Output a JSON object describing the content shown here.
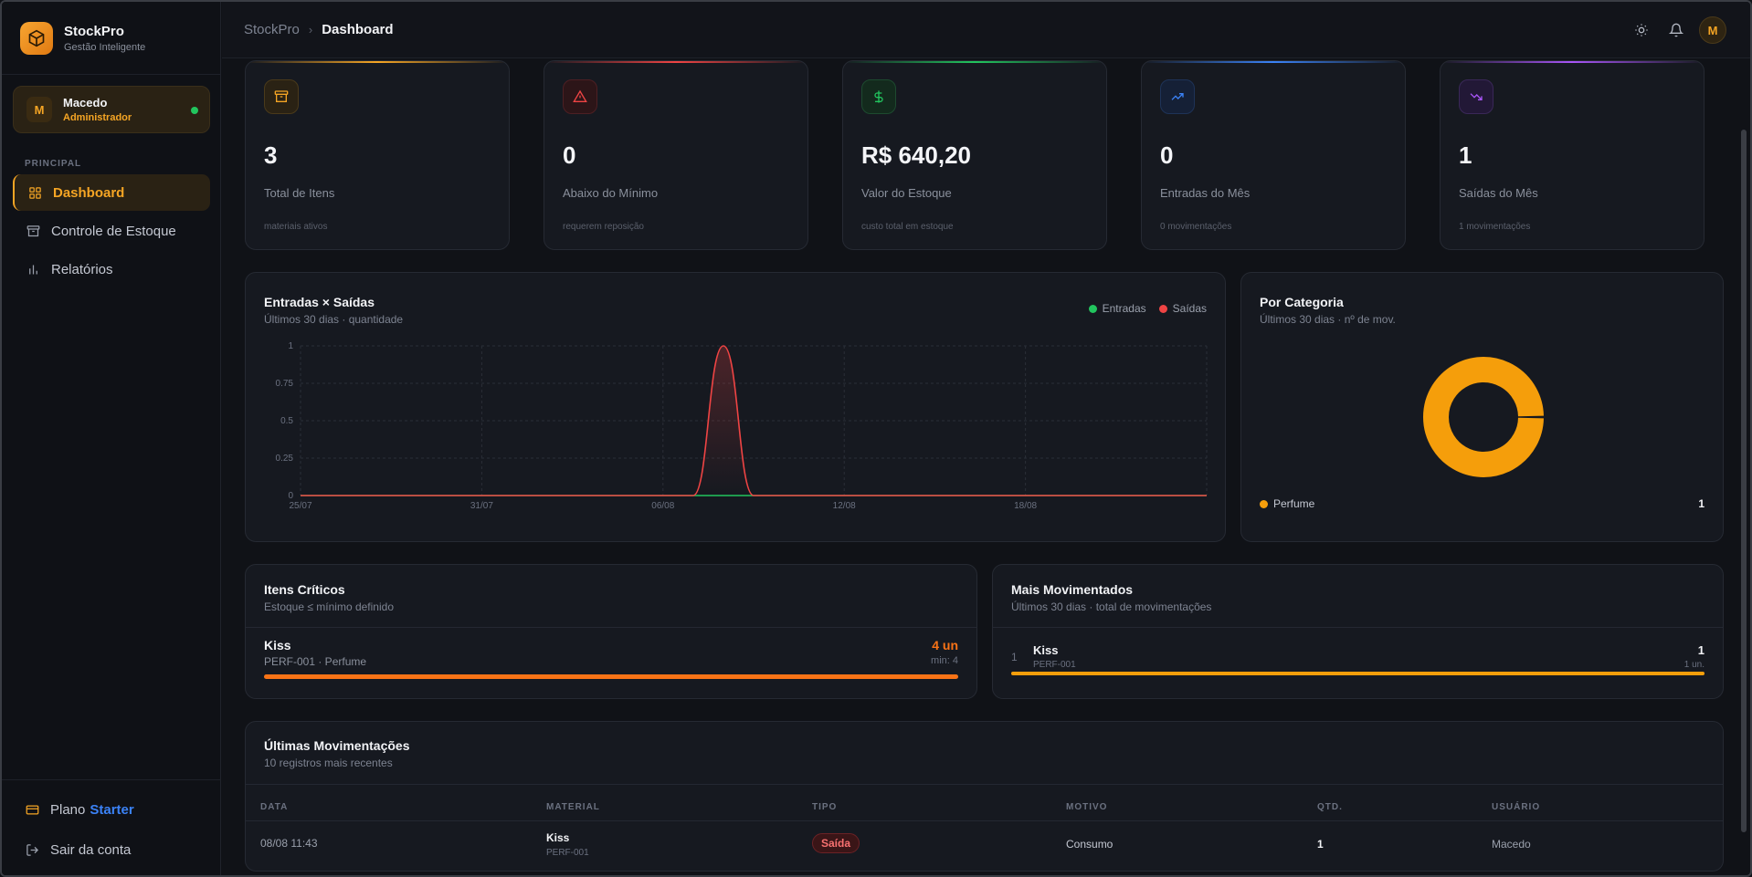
{
  "app": {
    "name": "StockPro",
    "tagline": "Gestão Inteligente"
  },
  "user": {
    "initial": "M",
    "name": "Macedo",
    "role": "Administrador"
  },
  "sidebar": {
    "section_label": "PRINCIPAL",
    "items": [
      {
        "label": "Dashboard",
        "icon": "grid-icon",
        "active": true
      },
      {
        "label": "Controle de Estoque",
        "icon": "archive-icon",
        "active": false
      },
      {
        "label": "Relatórios",
        "icon": "bar-chart-icon",
        "active": false
      }
    ],
    "plan_prefix": "Plano",
    "plan_name": "Starter",
    "logout": "Sair da conta"
  },
  "topbar": {
    "crumb_root": "StockPro",
    "crumb_current": "Dashboard",
    "avatar_initial": "M"
  },
  "stats": [
    {
      "value": "3",
      "label": "Total de Itens",
      "sub": "materiais ativos",
      "icon": "archive-icon",
      "color": "#f5a524"
    },
    {
      "value": "0",
      "label": "Abaixo do Mínimo",
      "sub": "requerem reposição",
      "icon": "warning-icon",
      "color": "#ef4444"
    },
    {
      "value": "R$ 640,20",
      "label": "Valor do Estoque",
      "sub": "custo total em estoque",
      "icon": "dollar-icon",
      "color": "#22c55e"
    },
    {
      "value": "0",
      "label": "Entradas do Mês",
      "sub": "0 movimentações",
      "icon": "trending-up-icon",
      "color": "#3b82f6"
    },
    {
      "value": "1",
      "label": "Saídas do Mês",
      "sub": "1 movimentações",
      "icon": "trending-down-icon",
      "color": "#a855f7"
    }
  ],
  "flow_chart": {
    "title": "Entradas × Saídas",
    "subtitle": "Últimos 30 dias · quantidade",
    "legend": {
      "in": "Entradas",
      "out": "Saídas"
    }
  },
  "category_chart": {
    "title": "Por Categoria",
    "subtitle": "Últimos 30 dias · nº de mov.",
    "items": [
      {
        "label": "Perfume",
        "value": "1"
      }
    ]
  },
  "critical": {
    "title": "Itens Críticos",
    "subtitle": "Estoque ≤ mínimo definido",
    "items": [
      {
        "name": "Kiss",
        "meta": "PERF-001 · Perfume",
        "qty": "4 un",
        "min": "min: 4",
        "level": 1.0
      }
    ]
  },
  "top_moved": {
    "title": "Mais Movimentados",
    "subtitle": "Últimos 30 dias · total de movimentações",
    "items": [
      {
        "rank": "1",
        "name": "Kiss",
        "code": "PERF-001",
        "count": "1",
        "unit": "1 un.",
        "level": 1.0
      }
    ]
  },
  "recent": {
    "title": "Últimas Movimentações",
    "subtitle": "10 registros mais recentes",
    "headers": [
      "DATA",
      "MATERIAL",
      "TIPO",
      "MOTIVO",
      "QTD.",
      "USUÁRIO"
    ],
    "rows": [
      {
        "date": "08/08 11:43",
        "material": "Kiss",
        "code": "PERF-001",
        "type": "Saída",
        "reason": "Consumo",
        "qty": "1",
        "user": "Macedo"
      }
    ]
  },
  "chart_data": [
    {
      "type": "area",
      "title": "Entradas × Saídas",
      "x_ticks": [
        "25/07",
        "31/07",
        "06/08",
        "12/08",
        "18/08"
      ],
      "y_ticks": [
        "0",
        "0.25",
        "0.5",
        "0.75",
        "1"
      ],
      "ylim": [
        0,
        1
      ],
      "grid": true,
      "legend_position": "top-right",
      "x": [
        "25/07",
        "26/07",
        "27/07",
        "28/07",
        "29/07",
        "30/07",
        "31/07",
        "01/08",
        "02/08",
        "03/08",
        "04/08",
        "05/08",
        "06/08",
        "07/08",
        "08/08",
        "09/08",
        "10/08",
        "11/08",
        "12/08",
        "13/08",
        "14/08",
        "15/08",
        "16/08",
        "17/08",
        "18/08",
        "19/08",
        "20/08",
        "21/08",
        "22/08",
        "23/08",
        "24/08"
      ],
      "series": [
        {
          "name": "Entradas",
          "color": "#22c55e",
          "values": [
            0,
            0,
            0,
            0,
            0,
            0,
            0,
            0,
            0,
            0,
            0,
            0,
            0,
            0,
            0,
            0,
            0,
            0,
            0,
            0,
            0,
            0,
            0,
            0,
            0,
            0,
            0,
            0,
            0,
            0,
            0
          ]
        },
        {
          "name": "Saídas",
          "color": "#ef4444",
          "values": [
            0,
            0,
            0,
            0,
            0,
            0,
            0,
            0,
            0,
            0,
            0,
            0,
            0,
            0,
            1,
            0,
            0,
            0,
            0,
            0,
            0,
            0,
            0,
            0,
            0,
            0,
            0,
            0,
            0,
            0,
            0
          ]
        }
      ]
    },
    {
      "type": "pie",
      "title": "Por Categoria",
      "categories": [
        "Perfume"
      ],
      "values": [
        1
      ],
      "colors": [
        "#f59e0b"
      ]
    }
  ]
}
